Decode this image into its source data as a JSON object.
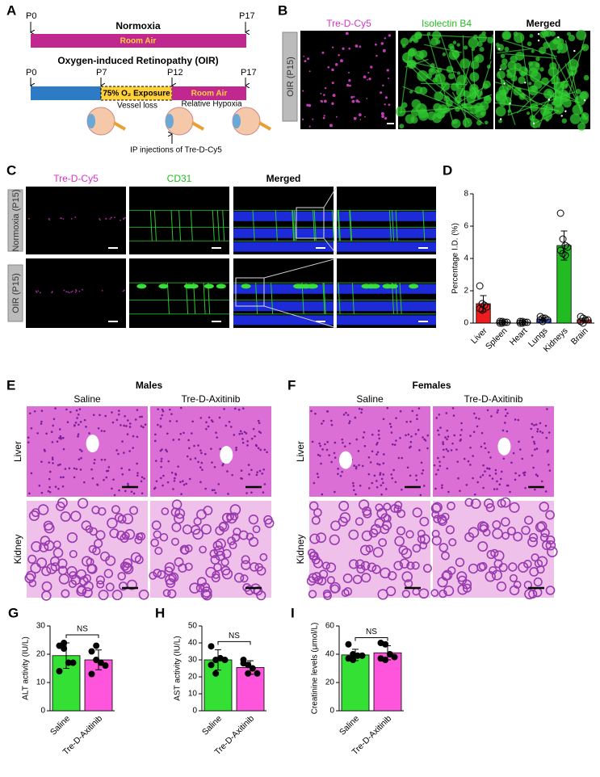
{
  "panel_labels": [
    "A",
    "B",
    "C",
    "D",
    "E",
    "F",
    "G",
    "H",
    "I"
  ],
  "panel_a": {
    "normoxia": {
      "title": "Normoxia",
      "band": "Room Air",
      "start": "P0",
      "end": "P17"
    },
    "oir": {
      "title": "Oxygen-induced Retinopathy (OIR)",
      "timepoints": [
        "P0",
        "P7",
        "P12",
        "P17"
      ],
      "exposure": "75% O₂ Exposure",
      "room_air": "Room Air",
      "vessel_loss": "Vessel loss",
      "hypoxia": "Relative Hypoxia",
      "injection": "IP injections of Tre-D-Cy5"
    }
  },
  "panel_b": {
    "columns": [
      "Tre-D-Cy5",
      "Isolectin B4",
      "Merged"
    ],
    "row": "OIR (P15)"
  },
  "panel_c": {
    "columns": [
      "Tre-D-Cy5",
      "CD31",
      "Merged"
    ],
    "rows": [
      "Normoxia (P15)",
      "OIR (P15)"
    ]
  },
  "panel_e": {
    "title": "Males",
    "columns": [
      "Saline",
      "Tre-D-Axitinib"
    ],
    "rows": [
      "Liver",
      "Kidney"
    ]
  },
  "panel_f": {
    "title": "Females",
    "columns": [
      "Saline",
      "Tre-D-Axitinib"
    ],
    "rows": [
      "Liver",
      "Kidney"
    ]
  },
  "chart_data": [
    {
      "type": "bar",
      "y_label": "Percentage I.D. (%)",
      "categories": [
        "Liver",
        "Spleen",
        "Heart",
        "Lungs",
        "Kidneys",
        "Brain"
      ],
      "values": [
        1.2,
        0.05,
        0.05,
        0.25,
        4.8,
        0.2
      ],
      "errors": [
        0.5,
        0.05,
        0.05,
        0.1,
        0.9,
        0.1
      ],
      "points": [
        [
          2.3,
          1.2,
          1.1,
          1.0,
          0.9,
          0.8
        ],
        [
          0.0,
          0.0,
          0.05,
          0.05,
          0.1,
          0.1
        ],
        [
          0.0,
          0.0,
          0.05,
          0.05,
          0.1,
          0.1
        ],
        [
          0.4,
          0.3,
          0.3,
          0.2,
          0.2,
          0.1
        ],
        [
          6.8,
          5.2,
          4.8,
          4.7,
          4.5,
          4.3,
          4.2
        ],
        [
          0.4,
          0.3,
          0.2,
          0.2,
          0.1,
          0.0
        ]
      ],
      "markers": "open",
      "colors": [
        "#ee1c1c",
        "#999999",
        "#999999",
        "#3355cc",
        "#22bb22",
        "#cc3333"
      ],
      "ylim": [
        0,
        8
      ],
      "yticks": [
        0,
        2,
        4,
        6,
        8
      ]
    },
    {
      "type": "bar",
      "y_label": "ALT activity (IU/L)",
      "categories": [
        "Saline",
        "Tre-D-Axitinib"
      ],
      "values": [
        19.5,
        18
      ],
      "errors": [
        4.5,
        3.5
      ],
      "points": [
        [
          23,
          22,
          17,
          17,
          14,
          24
        ],
        [
          21,
          18,
          17,
          16,
          13,
          23
        ]
      ],
      "markers": "filled",
      "colors": [
        "#33e033",
        "#ff55dd"
      ],
      "ylim": [
        0,
        30
      ],
      "yticks": [
        0,
        10,
        20,
        30
      ],
      "significance": "NS"
    },
    {
      "type": "bar",
      "y_label": "AST activity (IU/L)",
      "categories": [
        "Saline",
        "Tre-D-Axitinib"
      ],
      "values": [
        30,
        25.5
      ],
      "errors": [
        6,
        4
      ],
      "points": [
        [
          38,
          30,
          31,
          30,
          27,
          22
        ],
        [
          28,
          27,
          25,
          22,
          30,
          22
        ]
      ],
      "markers": "filled",
      "colors": [
        "#33e033",
        "#ff55dd"
      ],
      "ylim": [
        0,
        50
      ],
      "yticks": [
        0,
        10,
        20,
        30,
        40,
        50
      ],
      "significance": "NS"
    },
    {
      "type": "bar",
      "y_label": "Creatinine levels (μmol/L)",
      "categories": [
        "Saline",
        "Tre-D-Axitinib"
      ],
      "values": [
        39.5,
        41
      ],
      "errors": [
        4,
        5
      ],
      "points": [
        [
          47,
          40,
          39,
          39,
          37,
          36
        ],
        [
          48,
          47,
          40,
          38,
          37,
          36
        ]
      ],
      "markers": "filled",
      "colors": [
        "#33e033",
        "#ff55dd"
      ],
      "ylim": [
        0,
        60
      ],
      "yticks": [
        0,
        20,
        40,
        60
      ],
      "significance": "NS"
    }
  ]
}
